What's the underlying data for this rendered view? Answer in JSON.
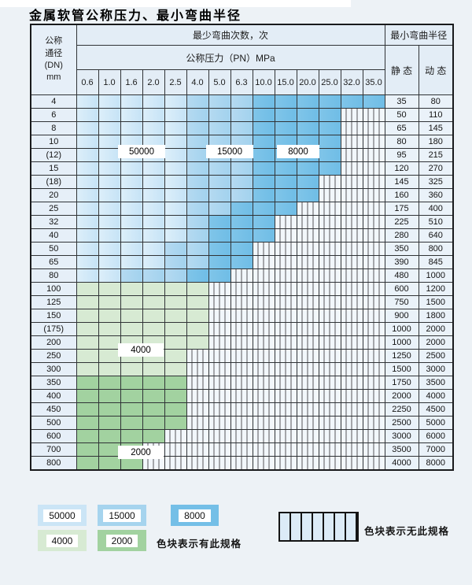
{
  "title": "金属软管公称压力、最小弯曲半径",
  "table": {
    "corner": {
      "line1": "公称",
      "line2": "通径",
      "line3": "(DN)",
      "line4": "mm"
    },
    "bend_header": "最少弯曲次数，次",
    "pressure_header": "公称压力（PN）MPa",
    "radius_header": "最小弯曲半径",
    "static_label": "静 态",
    "dynamic_label": "动 态",
    "pressure_cols": [
      "0.6",
      "1.0",
      "1.6",
      "2.0",
      "2.5",
      "4.0",
      "5.0",
      "6.3",
      "10.0",
      "15.0",
      "20.0",
      "25.0",
      "32.0",
      "35.0"
    ],
    "band_legend_note": "L=50000 light blue, M=15000 mid blue, D=8000 dark blue, g=4000 light green, G=2000 mid green, X=no spec (hatched)",
    "rows": [
      {
        "dn": "4",
        "cells": "LLLLLMMMDDDDDD",
        "static": "35",
        "dynamic": "80"
      },
      {
        "dn": "6",
        "cells": "LLLLLMMMDDDDXX",
        "static": "50",
        "dynamic": "110"
      },
      {
        "dn": "8",
        "cells": "LLLLLMMMDDDDXX",
        "static": "65",
        "dynamic": "145"
      },
      {
        "dn": "10",
        "cells": "LLLLLMMMDDDDXX",
        "static": "80",
        "dynamic": "180"
      },
      {
        "dn": "(12)",
        "cells": "LLLLLMMMDDDDXX",
        "static": "95",
        "dynamic": "215"
      },
      {
        "dn": "15",
        "cells": "LLLLLMMMDDDDXX",
        "static": "120",
        "dynamic": "270"
      },
      {
        "dn": "(18)",
        "cells": "LLLLLMMMDDDXXX",
        "static": "145",
        "dynamic": "325"
      },
      {
        "dn": "20",
        "cells": "LLLLLMMMDDDXXX",
        "static": "160",
        "dynamic": "360"
      },
      {
        "dn": "25",
        "cells": "LLLLLMMDDDXXXX",
        "static": "175",
        "dynamic": "400"
      },
      {
        "dn": "32",
        "cells": "LLLLLMDDDXXXXX",
        "static": "225",
        "dynamic": "510"
      },
      {
        "dn": "40",
        "cells": "LLLLLMDDDXXXXX",
        "static": "280",
        "dynamic": "640"
      },
      {
        "dn": "50",
        "cells": "LLLLMMDDXXXXXX",
        "static": "350",
        "dynamic": "800"
      },
      {
        "dn": "65",
        "cells": "LLLLMMDDXXXXXX",
        "static": "390",
        "dynamic": "845"
      },
      {
        "dn": "80",
        "cells": "LLMMMDDXXXXXXX",
        "static": "480",
        "dynamic": "1000"
      },
      {
        "dn": "100",
        "cells": "ggggggXXXXXXXX",
        "static": "600",
        "dynamic": "1200"
      },
      {
        "dn": "125",
        "cells": "ggggggXXXXXXXX",
        "static": "750",
        "dynamic": "1500"
      },
      {
        "dn": "150",
        "cells": "ggggggXXXXXXXX",
        "static": "900",
        "dynamic": "1800"
      },
      {
        "dn": "(175)",
        "cells": "ggggggXXXXXXXX",
        "static": "1000",
        "dynamic": "2000"
      },
      {
        "dn": "200",
        "cells": "ggggggXXXXXXXX",
        "static": "1000",
        "dynamic": "2000"
      },
      {
        "dn": "250",
        "cells": "gggggXXXXXXXXX",
        "static": "1250",
        "dynamic": "2500"
      },
      {
        "dn": "300",
        "cells": "gggggXXXXXXXXX",
        "static": "1500",
        "dynamic": "3000"
      },
      {
        "dn": "350",
        "cells": "GGGGGXXXXXXXXX",
        "static": "1750",
        "dynamic": "3500"
      },
      {
        "dn": "400",
        "cells": "GGGGGXXXXXXXXX",
        "static": "2000",
        "dynamic": "4000"
      },
      {
        "dn": "450",
        "cells": "GGGGGXXXXXXXXX",
        "static": "2250",
        "dynamic": "4500"
      },
      {
        "dn": "500",
        "cells": "GGGGGXXXXXXXXX",
        "static": "2500",
        "dynamic": "5000"
      },
      {
        "dn": "600",
        "cells": "GGGGXXXXXXXXXX",
        "static": "3000",
        "dynamic": "6000"
      },
      {
        "dn": "700",
        "cells": "GGGXXXXXXXXXXX",
        "static": "3500",
        "dynamic": "7000"
      },
      {
        "dn": "800",
        "cells": "GGGXXXXXXXXXXX",
        "static": "4000",
        "dynamic": "8000"
      }
    ]
  },
  "grid_labels": {
    "cycles_50000": "50000",
    "cycles_15000": "15000",
    "cycles_8000": "8000",
    "cycles_4000": "4000",
    "cycles_2000": "2000"
  },
  "legend": {
    "items": [
      {
        "value": "50000"
      },
      {
        "value": "15000"
      },
      {
        "value": "8000"
      },
      {
        "value": "4000"
      },
      {
        "value": "2000"
      }
    ],
    "present_text": "色块表示有此规格",
    "absent_text": "色块表示无此规格"
  },
  "colors": {
    "blue_50000": "#cbe5f6",
    "blue_15000": "#a6d4ee",
    "blue_8000": "#74bfe7",
    "green_4000": "#d7ead3",
    "green_2000": "#a2d2a0",
    "hatch_bg": "#f2f7fb",
    "header_bg": "#e3edf6",
    "page_bg": "#edf2f6"
  }
}
